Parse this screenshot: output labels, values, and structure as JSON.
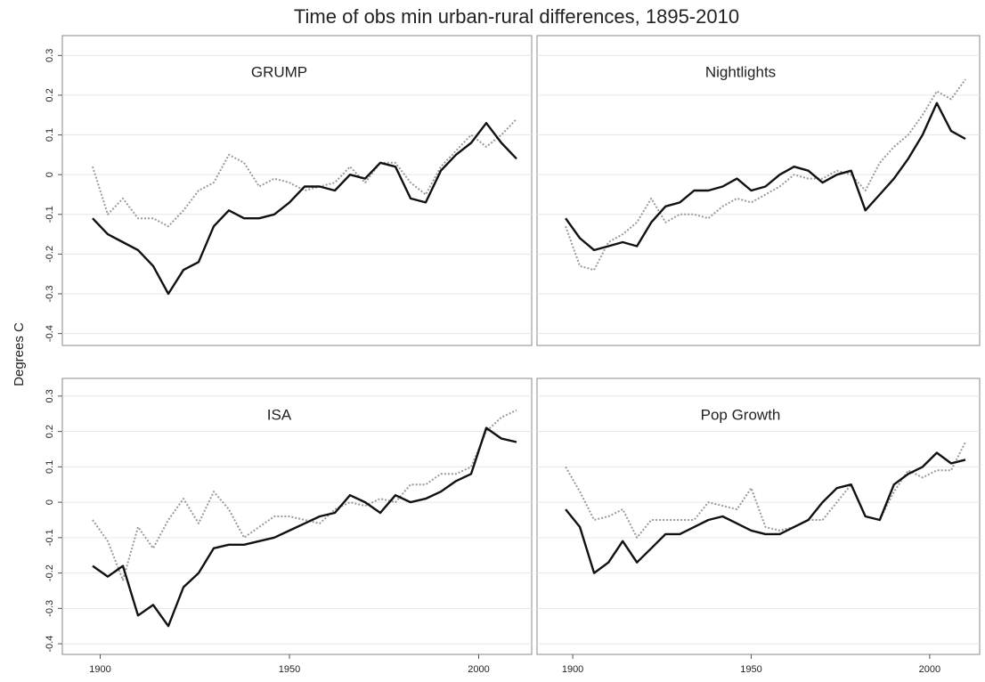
{
  "title": "Time of obs min urban-rural differences, 1895-2010",
  "y_label": "Degrees C",
  "chart_data": [
    {
      "type": "line",
      "title": "GRUMP",
      "x": [
        1898,
        1902,
        1906,
        1910,
        1914,
        1918,
        1922,
        1926,
        1930,
        1934,
        1938,
        1942,
        1946,
        1950,
        1954,
        1958,
        1962,
        1966,
        1970,
        1974,
        1978,
        1982,
        1986,
        1990,
        1994,
        1998,
        2002,
        2006,
        2010
      ],
      "series": [
        {
          "color": "#111111",
          "style": "solid",
          "values": [
            -0.11,
            -0.15,
            -0.17,
            -0.19,
            -0.23,
            -0.3,
            -0.24,
            -0.22,
            -0.13,
            -0.09,
            -0.11,
            -0.11,
            -0.1,
            -0.07,
            -0.03,
            -0.03,
            -0.04,
            0.0,
            -0.01,
            0.03,
            0.02,
            -0.06,
            -0.07,
            0.01,
            0.05,
            0.08,
            0.13,
            0.08,
            0.04
          ]
        },
        {
          "color": "#9a9a9a",
          "style": "dotted",
          "values": [
            0.02,
            -0.1,
            -0.06,
            -0.11,
            -0.11,
            -0.13,
            -0.09,
            -0.04,
            -0.02,
            0.05,
            0.03,
            -0.03,
            -0.01,
            -0.02,
            -0.04,
            -0.03,
            -0.02,
            0.02,
            -0.02,
            0.03,
            0.03,
            -0.02,
            -0.05,
            0.02,
            0.06,
            0.1,
            0.07,
            0.1,
            0.14
          ]
        }
      ],
      "xlim": [
        1890,
        2014
      ],
      "ylim": [
        -0.43,
        0.35
      ],
      "yticks": [
        -0.4,
        -0.3,
        -0.2,
        -0.1,
        0,
        0.1,
        0.2,
        0.3
      ],
      "ytick_labels": true,
      "grid": true
    },
    {
      "type": "line",
      "title": "Nightlights",
      "x": [
        1898,
        1902,
        1906,
        1910,
        1914,
        1918,
        1922,
        1926,
        1930,
        1934,
        1938,
        1942,
        1946,
        1950,
        1954,
        1958,
        1962,
        1966,
        1970,
        1974,
        1978,
        1982,
        1986,
        1990,
        1994,
        1998,
        2002,
        2006,
        2010
      ],
      "series": [
        {
          "color": "#111111",
          "style": "solid",
          "values": [
            -0.11,
            -0.16,
            -0.19,
            -0.18,
            -0.17,
            -0.18,
            -0.12,
            -0.08,
            -0.07,
            -0.04,
            -0.04,
            -0.03,
            -0.01,
            -0.04,
            -0.03,
            0.0,
            0.02,
            0.01,
            -0.02,
            0.0,
            0.01,
            -0.09,
            -0.05,
            -0.01,
            0.04,
            0.1,
            0.18,
            0.11,
            0.09
          ]
        },
        {
          "color": "#9a9a9a",
          "style": "dotted",
          "values": [
            -0.13,
            -0.23,
            -0.24,
            -0.17,
            -0.15,
            -0.12,
            -0.06,
            -0.12,
            -0.1,
            -0.1,
            -0.11,
            -0.08,
            -0.06,
            -0.07,
            -0.05,
            -0.03,
            0.0,
            -0.01,
            -0.01,
            0.01,
            0.0,
            -0.04,
            0.03,
            0.07,
            0.1,
            0.15,
            0.21,
            0.19,
            0.24
          ]
        }
      ],
      "xlim": [
        1890,
        2014
      ],
      "ylim": [
        -0.43,
        0.35
      ],
      "yticks": [
        -0.4,
        -0.3,
        -0.2,
        -0.1,
        0,
        0.1,
        0.2,
        0.3
      ],
      "ytick_labels": false,
      "grid": true
    },
    {
      "type": "line",
      "title": "ISA",
      "x": [
        1898,
        1902,
        1906,
        1910,
        1914,
        1918,
        1922,
        1926,
        1930,
        1934,
        1938,
        1942,
        1946,
        1950,
        1954,
        1958,
        1962,
        1966,
        1970,
        1974,
        1978,
        1982,
        1986,
        1990,
        1994,
        1998,
        2002,
        2006,
        2010
      ],
      "series": [
        {
          "color": "#111111",
          "style": "solid",
          "values": [
            -0.18,
            -0.21,
            -0.18,
            -0.32,
            -0.29,
            -0.35,
            -0.24,
            -0.2,
            -0.13,
            -0.12,
            -0.12,
            -0.11,
            -0.1,
            -0.08,
            -0.06,
            -0.04,
            -0.03,
            0.02,
            0.0,
            -0.03,
            0.02,
            0.0,
            0.01,
            0.03,
            0.06,
            0.08,
            0.21,
            0.18,
            0.17
          ]
        },
        {
          "color": "#9a9a9a",
          "style": "dotted",
          "values": [
            -0.05,
            -0.11,
            -0.22,
            -0.07,
            -0.13,
            -0.05,
            0.01,
            -0.06,
            0.03,
            -0.02,
            -0.1,
            -0.07,
            -0.04,
            -0.04,
            -0.05,
            -0.06,
            -0.02,
            0.0,
            -0.01,
            0.01,
            0.0,
            0.05,
            0.05,
            0.08,
            0.08,
            0.1,
            0.2,
            0.24,
            0.26
          ]
        }
      ],
      "xlim": [
        1890,
        2014
      ],
      "ylim": [
        -0.43,
        0.35
      ],
      "xticks": [
        1900,
        1950,
        2000
      ],
      "yticks": [
        -0.4,
        -0.3,
        -0.2,
        -0.1,
        0,
        0.1,
        0.2,
        0.3
      ],
      "ytick_labels": true,
      "grid": true
    },
    {
      "type": "line",
      "title": "Pop Growth",
      "x": [
        1898,
        1902,
        1906,
        1910,
        1914,
        1918,
        1922,
        1926,
        1930,
        1934,
        1938,
        1942,
        1946,
        1950,
        1954,
        1958,
        1962,
        1966,
        1970,
        1974,
        1978,
        1982,
        1986,
        1990,
        1994,
        1998,
        2002,
        2006,
        2010
      ],
      "series": [
        {
          "color": "#111111",
          "style": "solid",
          "values": [
            -0.02,
            -0.07,
            -0.2,
            -0.17,
            -0.11,
            -0.17,
            -0.13,
            -0.09,
            -0.09,
            -0.07,
            -0.05,
            -0.04,
            -0.06,
            -0.08,
            -0.09,
            -0.09,
            -0.07,
            -0.05,
            0.0,
            0.04,
            0.05,
            -0.04,
            -0.05,
            0.05,
            0.08,
            0.1,
            0.14,
            0.11,
            0.12
          ]
        },
        {
          "color": "#9a9a9a",
          "style": "dotted",
          "values": [
            0.1,
            0.03,
            -0.05,
            -0.04,
            -0.02,
            -0.1,
            -0.05,
            -0.05,
            -0.05,
            -0.05,
            0.0,
            -0.01,
            -0.02,
            0.04,
            -0.07,
            -0.08,
            -0.07,
            -0.05,
            -0.05,
            0.0,
            0.05,
            -0.04,
            -0.05,
            0.03,
            0.09,
            0.07,
            0.09,
            0.09,
            0.17
          ]
        }
      ],
      "xlim": [
        1890,
        2014
      ],
      "ylim": [
        -0.43,
        0.35
      ],
      "xticks": [
        1900,
        1950,
        2000
      ],
      "yticks": [
        -0.4,
        -0.3,
        -0.2,
        -0.1,
        0,
        0.1,
        0.2,
        0.3
      ],
      "ytick_labels": false,
      "grid": true
    }
  ]
}
